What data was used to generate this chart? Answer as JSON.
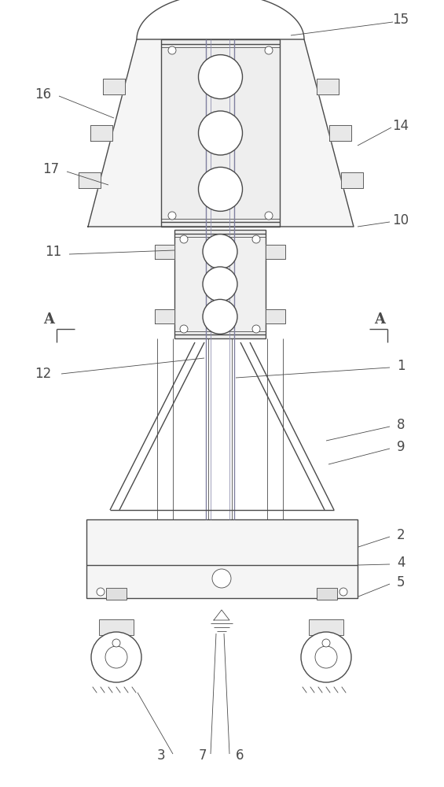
{
  "bg_color": "#ffffff",
  "line_color": "#4a4a4a",
  "lw": 1.0,
  "tlw": 0.6,
  "fig_width": 5.65,
  "fig_height": 10.0
}
